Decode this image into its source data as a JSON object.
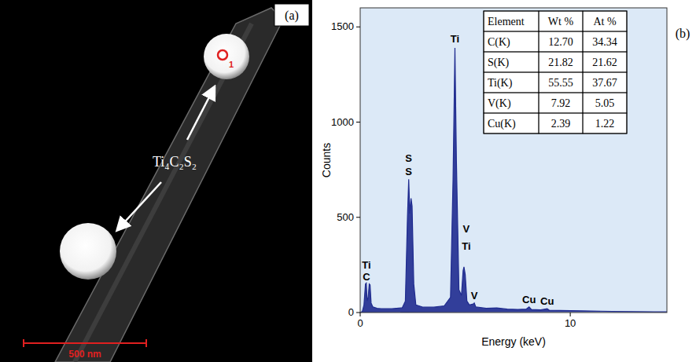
{
  "image_panel": {
    "label": "(a)",
    "phase": "Ti₄C₂S₂",
    "spot": "1",
    "scale_bar": "500 nm"
  },
  "chart_data": {
    "type": "line",
    "label": "(b)",
    "x_label": "Energy (keV)",
    "y_label": "Counts",
    "color": "#1f2b8f",
    "x": [
      0.0,
      0.1,
      0.18,
      0.25,
      0.29,
      0.33,
      0.38,
      0.43,
      0.47,
      0.52,
      0.6,
      0.8,
      1.0,
      1.5,
      2.0,
      2.15,
      2.25,
      2.31,
      2.36,
      2.42,
      2.47,
      2.55,
      2.65,
      3.0,
      3.5,
      4.0,
      4.3,
      4.42,
      4.51,
      4.58,
      4.7,
      4.82,
      4.9,
      4.94,
      5.0,
      5.08,
      5.2,
      5.38,
      5.43,
      5.5,
      6.0,
      6.5,
      7.0,
      7.5,
      7.9,
      8.04,
      8.15,
      8.6,
      8.9,
      9.0,
      10.0,
      11.0,
      12.0,
      13.0,
      14.0,
      14.6
    ],
    "values": [
      0,
      5,
      40,
      150,
      155,
      60,
      80,
      150,
      145,
      50,
      30,
      22,
      20,
      20,
      25,
      60,
      500,
      700,
      520,
      600,
      560,
      150,
      40,
      28,
      28,
      35,
      80,
      700,
      1390,
      800,
      120,
      90,
      220,
      240,
      200,
      60,
      40,
      45,
      50,
      30,
      22,
      24,
      18,
      16,
      18,
      30,
      16,
      14,
      20,
      12,
      10,
      8,
      6,
      5,
      4,
      4
    ],
    "xlim": [
      0,
      14.6
    ],
    "ylim": [
      0,
      1600
    ],
    "xticks": [
      0,
      10
    ],
    "yticks": [
      0,
      500,
      1000,
      1500
    ],
    "annotations": [
      {
        "text": "Ti",
        "x": 0.3,
        "y": 230
      },
      {
        "text": "C",
        "x": 0.3,
        "y": 170
      },
      {
        "text": "S",
        "x": 2.31,
        "y": 790
      },
      {
        "text": "S",
        "x": 2.31,
        "y": 720
      },
      {
        "text": "Ti",
        "x": 4.51,
        "y": 1420
      },
      {
        "text": "V",
        "x": 5.05,
        "y": 420
      },
      {
        "text": "Ti",
        "x": 5.05,
        "y": 330
      },
      {
        "text": "V",
        "x": 5.43,
        "y": 70
      },
      {
        "text": "Cu",
        "x": 8.04,
        "y": 50
      },
      {
        "text": "Cu",
        "x": 8.9,
        "y": 40
      }
    ]
  },
  "table": {
    "header": [
      "Element",
      "Wt %",
      "At %"
    ],
    "rows": [
      [
        "C(K)",
        "12.70",
        "34.34"
      ],
      [
        "S(K)",
        "21.82",
        "21.62"
      ],
      [
        "Ti(K)",
        "55.55",
        "37.67"
      ],
      [
        "V(K)",
        "7.92",
        "5.05"
      ],
      [
        "Cu(K)",
        "2.39",
        "1.22"
      ]
    ]
  }
}
